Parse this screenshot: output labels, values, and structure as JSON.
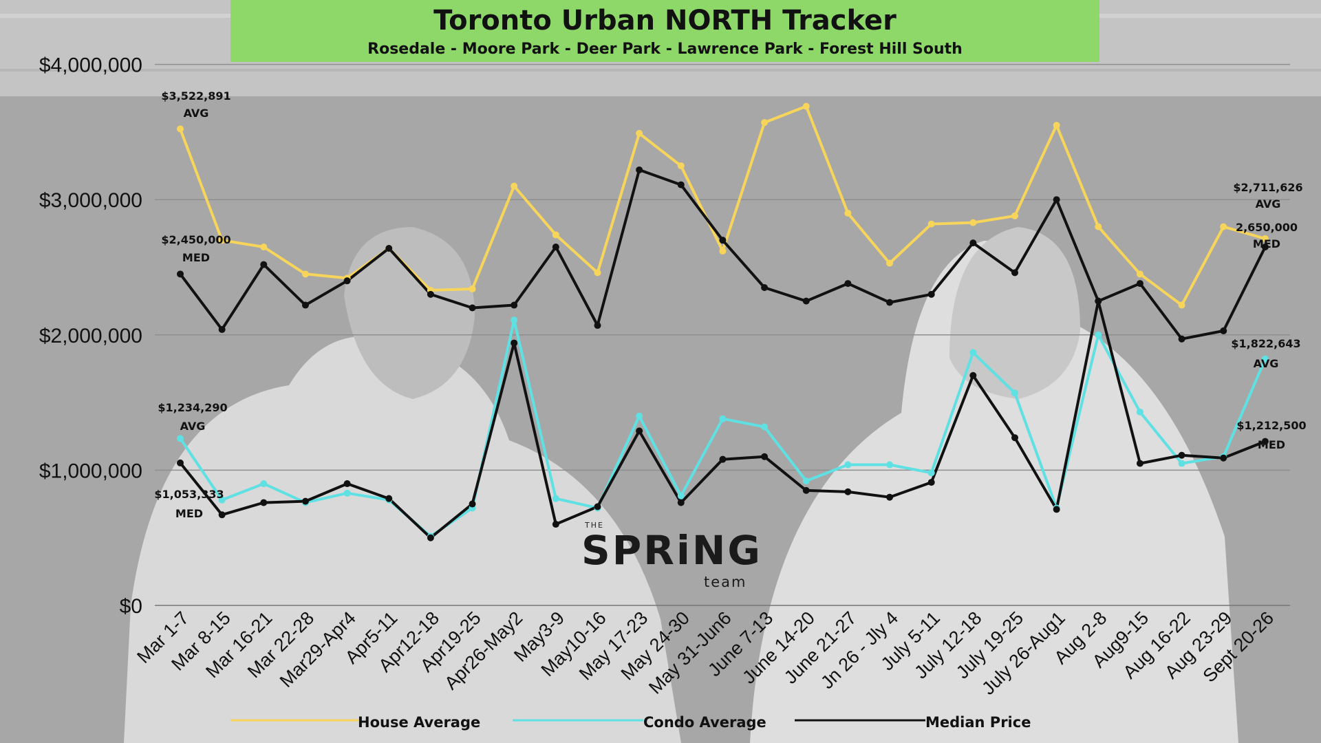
{
  "header": {
    "title": "Toronto Urban NORTH Tracker",
    "subtitle": "Rosedale - Moore Park - Deer Park - Lawrence Park - Forest Hill South"
  },
  "logo": {
    "the": "THE",
    "spring": "SPRiNG",
    "team": "team"
  },
  "colors": {
    "house": "#f7d55a",
    "condo": "#5fe0e3",
    "median": "#111111",
    "title_bg": "#8ed86a",
    "background": "#a9a9a9"
  },
  "chart_data": {
    "type": "line",
    "categories": [
      "Mar 1-7",
      "Mar 8-15",
      "Mar 16-21",
      "Mar 22-28",
      "Mar29-Apr4",
      "Apr5-11",
      "Apr12-18",
      "Apr19-25",
      "Apr26-May2",
      "May3-9",
      "May10-16",
      "May 17-23",
      "May 24-30",
      "May 31-Jun6",
      "June 7-13",
      "June 14-20",
      "June 21-27",
      "Jn 26 - Jly 4",
      "July 5-11",
      "July 12-18",
      "July 19-25",
      "July 26-Aug1",
      "Aug 2-8",
      "Aug9-15",
      "Aug 16-22",
      "Aug 23-29",
      "Sept 20-26"
    ],
    "y_ticks": [
      "$0",
      "$1,000,000",
      "$2,000,000",
      "$3,000,000",
      "$4,000,000"
    ],
    "ylim": [
      0,
      4000000
    ],
    "grid": true,
    "legend_position": "bottom",
    "series": [
      {
        "name": "House Average",
        "color": "#f7d55a",
        "values": [
          3522891,
          2700000,
          2650000,
          2450000,
          2420000,
          2640000,
          2330000,
          2340000,
          3100000,
          2740000,
          2460000,
          3490000,
          3250000,
          2620000,
          3570000,
          3690000,
          2900000,
          2530000,
          2820000,
          2830000,
          2880000,
          3550000,
          2800000,
          2450000,
          2220000,
          2800000,
          2711626
        ]
      },
      {
        "name": "Condo Average",
        "color": "#5fe0e3",
        "values": [
          1234290,
          780000,
          900000,
          760000,
          830000,
          780000,
          510000,
          720000,
          2110000,
          790000,
          720000,
          1400000,
          810000,
          1380000,
          1320000,
          920000,
          1040000,
          1040000,
          980000,
          1870000,
          1570000,
          720000,
          2000000,
          1430000,
          1050000,
          1100000,
          1822643
        ]
      },
      {
        "name": "Median Price",
        "color": "#111111",
        "values": [
          1053333,
          670000,
          760000,
          770000,
          900000,
          790000,
          500000,
          750000,
          1940000,
          600000,
          730000,
          1290000,
          760000,
          1080000,
          1100000,
          850000,
          840000,
          800000,
          910000,
          1700000,
          1240000,
          710000,
          2250000,
          1050000,
          1110000,
          1090000,
          1212500
        ]
      },
      {
        "name": "Median Price",
        "color": "#111111",
        "values": [
          2450000,
          2040000,
          2520000,
          2220000,
          2400000,
          2640000,
          2300000,
          2200000,
          2220000,
          2650000,
          2070000,
          3220000,
          3110000,
          2700000,
          2350000,
          2250000,
          2380000,
          2240000,
          2300000,
          2680000,
          2460000,
          3000000,
          2250000,
          2380000,
          1970000,
          2030000,
          2650000
        ]
      }
    ],
    "annotations": [
      {
        "value": "$3,522,891",
        "tag": "AVG"
      },
      {
        "value": "$2,450,000",
        "tag": "MED"
      },
      {
        "value": "$1,234,290",
        "tag": "AVG"
      },
      {
        "value": "$1,053,333",
        "tag": "MED"
      },
      {
        "value": "$2,711,626",
        "tag": "AVG"
      },
      {
        "value": "2,650,000",
        "tag": "MED"
      },
      {
        "value": "$1,822,643",
        "tag": "AVG"
      },
      {
        "value": "$1,212,500",
        "tag": "MED"
      }
    ],
    "legend": [
      {
        "label": "House Average",
        "color": "#f7d55a"
      },
      {
        "label": "Condo Average",
        "color": "#5fe0e3"
      },
      {
        "label": "Median Price",
        "color": "#111111"
      }
    ]
  }
}
